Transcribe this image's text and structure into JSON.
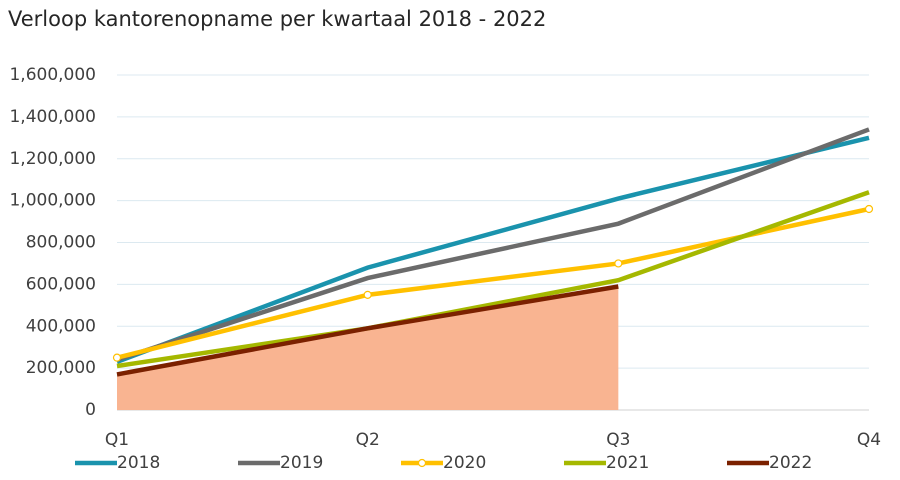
{
  "chart_data": {
    "type": "line",
    "title": "Verloop kantorenopname per kwartaal 2018 - 2022",
    "categories": [
      "Q1",
      "Q2",
      "Q3",
      "Q4"
    ],
    "series": [
      {
        "name": "2018",
        "color": "#1a93ad",
        "values": [
          230000,
          680000,
          1010000,
          1300000
        ]
      },
      {
        "name": "2019",
        "color": "#6b6b6b",
        "values": [
          240000,
          630000,
          890000,
          1340000
        ]
      },
      {
        "name": "2020",
        "color": "#ffc000",
        "values": [
          250000,
          550000,
          700000,
          960000
        ],
        "marker": "circle"
      },
      {
        "name": "2021",
        "color": "#a5b800",
        "values": [
          210000,
          390000,
          620000,
          1040000
        ]
      },
      {
        "name": "2022",
        "color": "#7b2100",
        "values": [
          170000,
          390000,
          590000,
          null
        ],
        "area_color": "#f9b491"
      }
    ],
    "ylim": [
      0,
      1600000
    ],
    "yticks": [
      0,
      {
        "value": 200000,
        "label": "200,000"
      },
      {
        "value": 400000,
        "label": "400,000"
      },
      {
        "value": 600000,
        "label": "600,000"
      },
      {
        "value": 800000,
        "label": "800,000"
      },
      {
        "value": 1000000,
        "label": "1,000,000"
      },
      {
        "value": 1200000,
        "label": "1,200,000"
      },
      {
        "value": 1400000,
        "label": "1,400,000"
      },
      {
        "value": 1600000,
        "label": "1,600,000"
      }
    ],
    "grid": true,
    "legend": "bottom"
  }
}
